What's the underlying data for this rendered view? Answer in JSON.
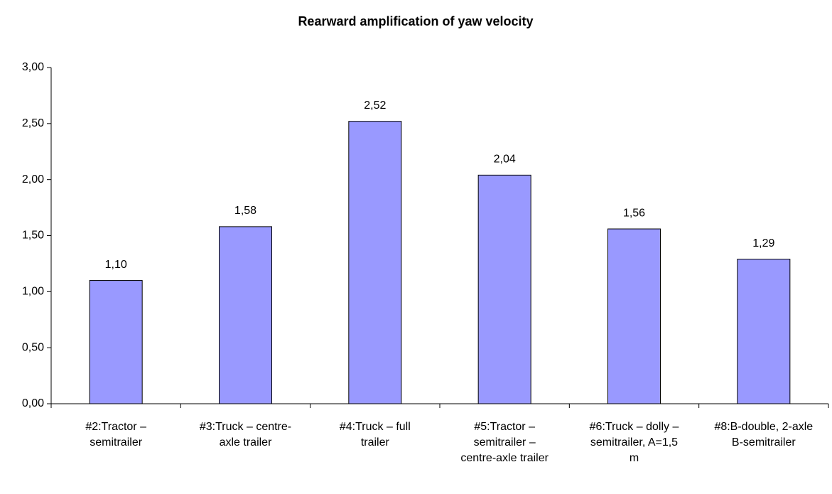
{
  "chart_data": {
    "type": "bar",
    "title": "Rearward amplification of yaw velocity",
    "categories": [
      "#2:Tractor – semitrailer",
      "#3:Truck – centre-axle trailer",
      "#4:Truck – full trailer",
      "#5:Tractor – semitrailer – centre-axle trailer",
      "#6:Truck – dolly – semitrailer, A=1,5 m",
      "#8:B-double, 2-axle B-semitrailer"
    ],
    "values": [
      1.1,
      1.58,
      2.52,
      2.04,
      1.56,
      1.29
    ],
    "value_labels": [
      "1,10",
      "1,58",
      "2,52",
      "2,04",
      "1,56",
      "1,29"
    ],
    "color": "#9999ff",
    "ylim": [
      0,
      3
    ],
    "yticks": [
      {
        "value": 0,
        "label": "0,00"
      },
      {
        "value": 0.5,
        "label": "0,50"
      },
      {
        "value": 1,
        "label": "1,00"
      },
      {
        "value": 1.5,
        "label": "1,50"
      },
      {
        "value": 2,
        "label": "2,00"
      },
      {
        "value": 2.5,
        "label": "2,50"
      },
      {
        "value": 3,
        "label": "3,00"
      }
    ],
    "grid": false
  }
}
